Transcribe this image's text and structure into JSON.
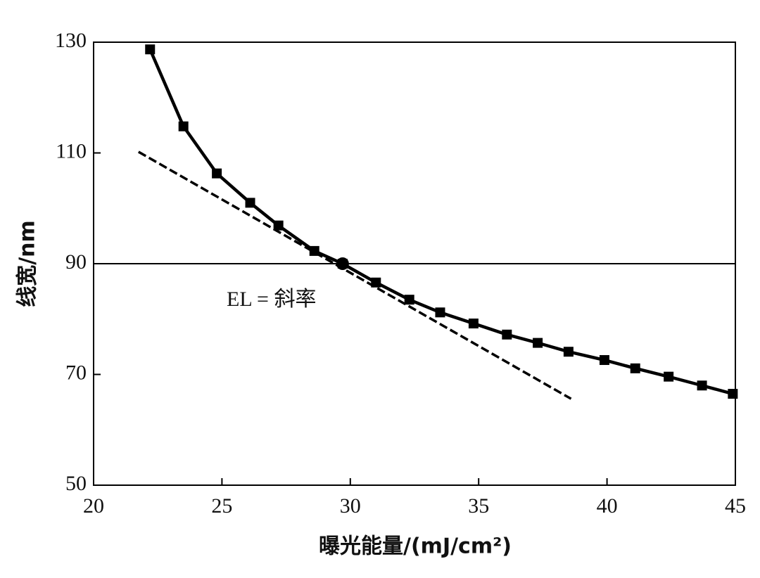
{
  "chart_data": {
    "type": "line",
    "xlabel": "曝光能量/(mJ/cm²)",
    "ylabel": "线宽/nm",
    "xlim": [
      20,
      45
    ],
    "xticks": [
      20,
      25,
      30,
      35,
      40,
      45
    ],
    "ylim": [
      50,
      130
    ],
    "yticks": [
      50,
      70,
      90,
      110,
      130
    ],
    "reference_line": 90,
    "annotation": "EL = 斜率",
    "series": [
      {
        "color": "#000000",
        "marker": "square",
        "dashed": false,
        "x": [
          22.2,
          23.5,
          24.8,
          26.1,
          27.2,
          28.6,
          29.7,
          31.0,
          32.3,
          33.5,
          34.8,
          36.1,
          37.3,
          38.5,
          39.9,
          41.1,
          42.4,
          43.7,
          44.9
        ],
        "values": [
          128.7,
          114.8,
          106.3,
          101.0,
          96.9,
          92.3,
          90,
          86.6,
          83.5,
          81.2,
          79.2,
          77.2,
          75.7,
          74.1,
          72.6,
          71.1,
          69.6,
          68.0,
          66.5
        ]
      },
      {
        "color": "#000000",
        "marker": "circle",
        "dashed": false,
        "x": [
          29.7
        ],
        "values": [
          90
        ]
      },
      {
        "color": "#000000",
        "marker": "none",
        "dashed": true,
        "x": [
          21.75,
          38.6
        ],
        "values": [
          110.2,
          65.6
        ]
      }
    ]
  }
}
